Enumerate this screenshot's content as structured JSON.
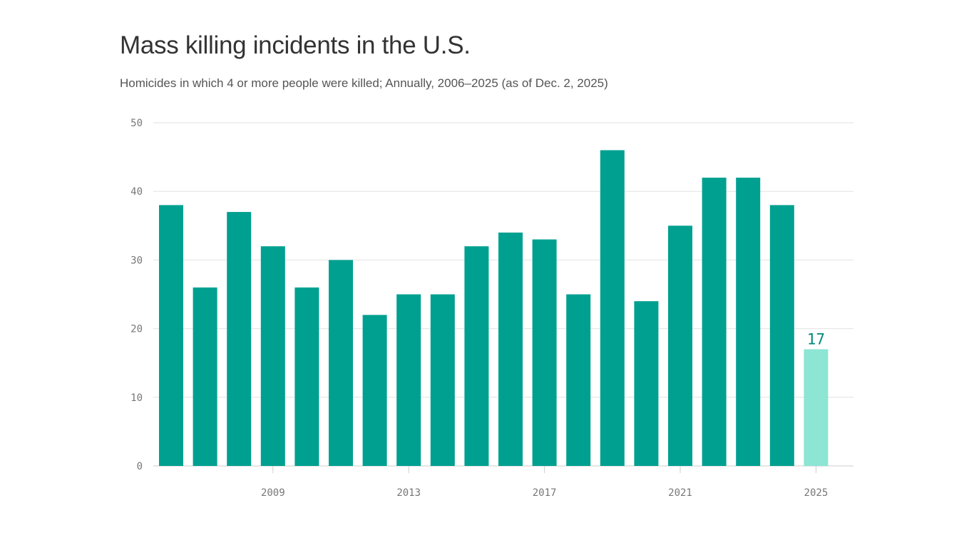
{
  "chart_data": {
    "type": "bar",
    "title": "Mass killing incidents in the U.S.",
    "subtitle": "Homicides in which 4 or more people were killed; Annually, 2006–2025 (as of Dec. 2, 2025)",
    "xlabel": "",
    "ylabel": "",
    "categories": [
      "2006",
      "2007",
      "2008",
      "2009",
      "2010",
      "2011",
      "2012",
      "2013",
      "2014",
      "2015",
      "2016",
      "2017",
      "2018",
      "2019",
      "2020",
      "2021",
      "2022",
      "2023",
      "2024",
      "2025"
    ],
    "values": [
      38,
      26,
      37,
      32,
      26,
      30,
      22,
      25,
      25,
      32,
      34,
      33,
      25,
      46,
      24,
      35,
      42,
      42,
      38,
      17
    ],
    "ylim": [
      0,
      50
    ],
    "yticks": [
      "0",
      "10",
      "20",
      "30",
      "40",
      "50"
    ],
    "xticks": [
      "2009",
      "2013",
      "2017",
      "2021",
      "2025"
    ],
    "grid": true,
    "highlight": {
      "category": "2025",
      "label": "17"
    },
    "colors": {
      "bar": "#00a091",
      "highlight_bar": "#8de5d4",
      "label": "#00897d"
    }
  }
}
